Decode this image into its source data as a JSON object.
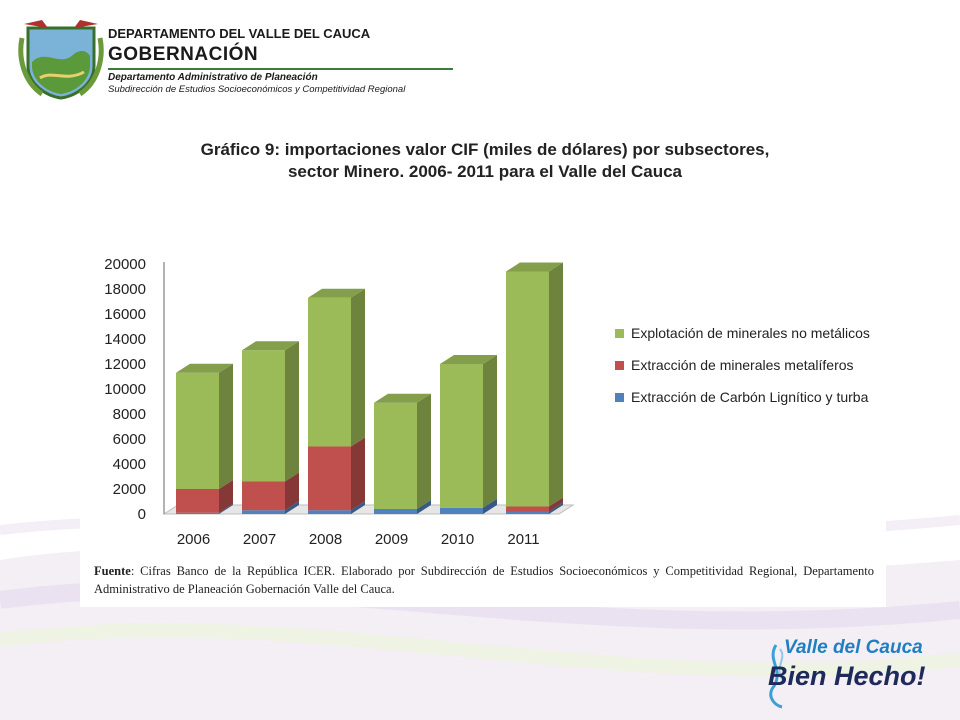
{
  "header": {
    "line1": "DEPARTAMENTO DEL VALLE DEL CAUCA",
    "line2": "GOBERNACIÓN",
    "line3": "Departamento  Administrativo de Planeación",
    "line4": "Subdirección de Estudios Socioeconómicos y Competitividad Regional",
    "seal_icon": "coat-of-arms-icon"
  },
  "chart": {
    "title_line1": "Gráfico 9: importaciones  valor CIF (miles de dólares) por subsectores,",
    "title_line2": "sector Minero. 2006- 2011 para el Valle del Cauca",
    "source_label": "Fuente",
    "source_text": ": Cifras Banco de la República ICER. Elaborado por Subdirección de Estudios Socioeconómicos y Competitividad Regional, Departamento Administrativo de Planeación Gobernación Valle del Cauca."
  },
  "chart_data": {
    "type": "bar",
    "stacked": true,
    "style": "3d",
    "categories": [
      "2006",
      "2007",
      "2008",
      "2009",
      "2010",
      "2011"
    ],
    "series": [
      {
        "name": "Extracción de Carbón Lignítico y turba",
        "color": "#4f81bd",
        "values": [
          100,
          300,
          300,
          400,
          500,
          200
        ]
      },
      {
        "name": "Extracción de minerales metalíferos",
        "color": "#c0504d",
        "values": [
          1900,
          2300,
          5100,
          0,
          0,
          400
        ]
      },
      {
        "name": "Explotación de minerales no metálicos",
        "color": "#9bbb59",
        "values": [
          9300,
          10500,
          11900,
          8500,
          11500,
          18800
        ]
      }
    ],
    "legend_order": [
      2,
      1,
      0
    ],
    "ylim": [
      0,
      20000
    ],
    "yticks": [
      0,
      2000,
      4000,
      6000,
      8000,
      10000,
      12000,
      14000,
      16000,
      18000,
      20000
    ],
    "legend_position": "right",
    "grid": false
  },
  "brand": {
    "line1": "Valle del Cauca",
    "line2": "Bien Hecho!"
  }
}
